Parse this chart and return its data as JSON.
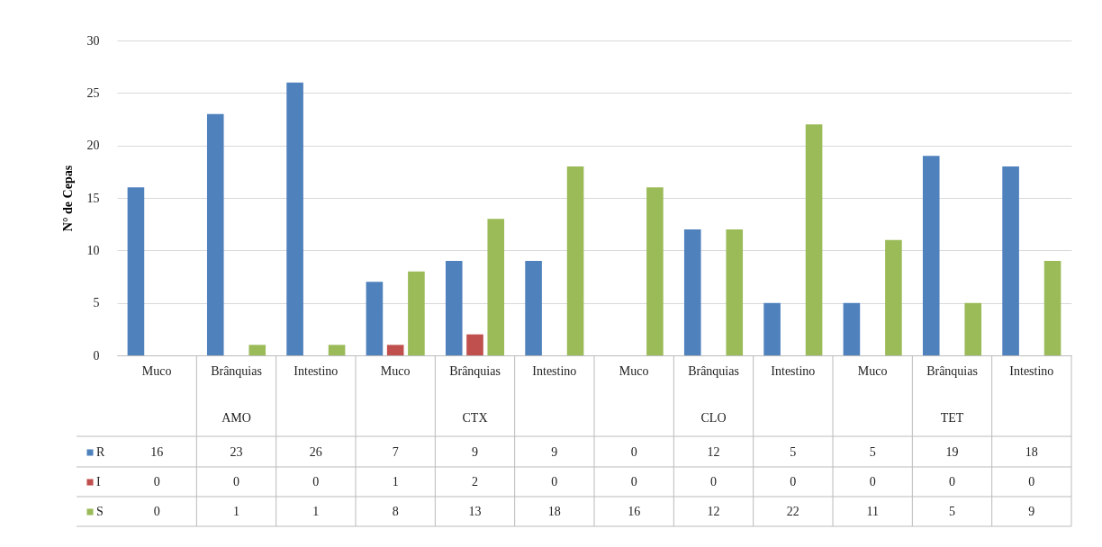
{
  "chart_data": {
    "type": "bar",
    "ylabel": "N° de Cepas",
    "categories": [
      "Muco",
      "Brânquias",
      "Intestino",
      "Muco",
      "Brânquias",
      "Intestino",
      "Muco",
      "Brânquias",
      "Intestino",
      "Muco",
      "Brânquias",
      "Intestino"
    ],
    "annotations": [
      "AMO",
      "CTX",
      "CLO",
      "TET"
    ],
    "series": [
      {
        "name": "R",
        "color": "#4f81bd",
        "values": [
          16,
          23,
          26,
          7,
          9,
          9,
          0,
          12,
          5,
          5,
          19,
          18
        ]
      },
      {
        "name": "I",
        "color": "#c0504d",
        "values": [
          0,
          0,
          0,
          1,
          2,
          0,
          0,
          0,
          0,
          0,
          0,
          0
        ]
      },
      {
        "name": "S",
        "color": "#9bbb59",
        "values": [
          0,
          1,
          1,
          8,
          13,
          18,
          16,
          12,
          22,
          11,
          5,
          9
        ]
      }
    ],
    "ylim": [
      0,
      30
    ],
    "yticks": [
      0,
      5,
      10,
      15,
      20,
      25,
      30
    ],
    "grid": "y",
    "data_labels": true,
    "legend": "bottom"
  }
}
